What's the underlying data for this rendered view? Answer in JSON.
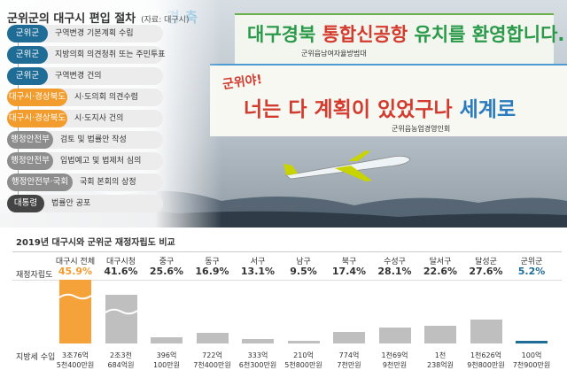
{
  "process": {
    "title": "군위군의 대구시 편입 절차",
    "source": "(자료: 대구시)",
    "steps": [
      {
        "actor": "군위군",
        "action": "구역변경 기본계획 수립",
        "color": "blue"
      },
      {
        "actor": "군위군",
        "action": "지방의회 의견청취 또는 주민투표",
        "color": "blue"
      },
      {
        "actor": "군위군",
        "action": "구역변경 건의",
        "color": "blue"
      },
      {
        "actor": "대구시·경상북도",
        "action": "시·도의회 의견수렴",
        "color": "orange"
      },
      {
        "actor": "대구시·경상북도",
        "action": "시·도지사 건의",
        "color": "orange"
      },
      {
        "actor": "행정안전부",
        "action": "검토 및 법률안 작성",
        "color": "gray"
      },
      {
        "actor": "행정안전부",
        "action": "입법예고 및 법제처 심의",
        "color": "gray"
      },
      {
        "actor": "행정안전부·국회",
        "action": "국회 본회의 상정",
        "color": "gray"
      },
      {
        "actor": "대통령",
        "action": "법률안 공포",
        "color": "dark"
      }
    ]
  },
  "photo": {
    "banner1_prefix": "대구경북",
    "banner1_highlight": "통합신공항",
    "banner1_suffix": "유치를 환영합니다.",
    "banner1_sub": "군위읍남여자율방범대",
    "banner2_small": "군위야!",
    "banner2_main": "너는 다 계획이 있었구나",
    "banner2_end": "세계로",
    "banner2_sub": "군위읍농업경영인회",
    "left_sign": "경 축"
  },
  "chart_data": {
    "type": "bar",
    "title": "2019년 대구시와 군위군 재정자립도 비교",
    "row_labels": {
      "rate": "재정자립도",
      "tax": "지방세 수입"
    },
    "categories": [
      "대구시 전체",
      "대구시청",
      "중구",
      "동구",
      "서구",
      "남구",
      "북구",
      "수성구",
      "달서구",
      "달성군",
      "군위군"
    ],
    "rates": [
      "45.9%",
      "41.6%",
      "25.6%",
      "16.9%",
      "13.1%",
      "9.5%",
      "17.4%",
      "28.1%",
      "22.6%",
      "27.6%",
      "5.2%"
    ],
    "rate_values": [
      45.9,
      41.6,
      25.6,
      16.9,
      13.1,
      9.5,
      17.4,
      28.1,
      22.6,
      27.6,
      5.2
    ],
    "tax_line1": [
      "3조76억",
      "2조3천",
      "396억",
      "722억",
      "333억",
      "210억",
      "774억",
      "1천69억",
      "1천",
      "1천626억",
      "100억"
    ],
    "tax_line2": [
      "5천400만원",
      "684억원",
      "100만원",
      "7천400만원",
      "6천300만원",
      "5천800만원",
      "7천만원",
      "9천만원",
      "238억원",
      "9천800만원",
      "7천900만원"
    ],
    "tax_eok": [
      30076.54,
      23684,
      396.01,
      722.74,
      333.63,
      210.58,
      774.7,
      1069.9,
      1238,
      1626.98,
      100.79
    ],
    "axis_break": [
      true,
      true,
      false,
      false,
      false,
      false,
      false,
      false,
      false,
      false,
      false
    ],
    "colors": {
      "highlight": "#f6a23b",
      "normal": "#bfbfbf",
      "gungwi": "#1f6c96",
      "rate_highlight": "#f39c2e",
      "rate_gungwi": "#1f6c96"
    }
  }
}
